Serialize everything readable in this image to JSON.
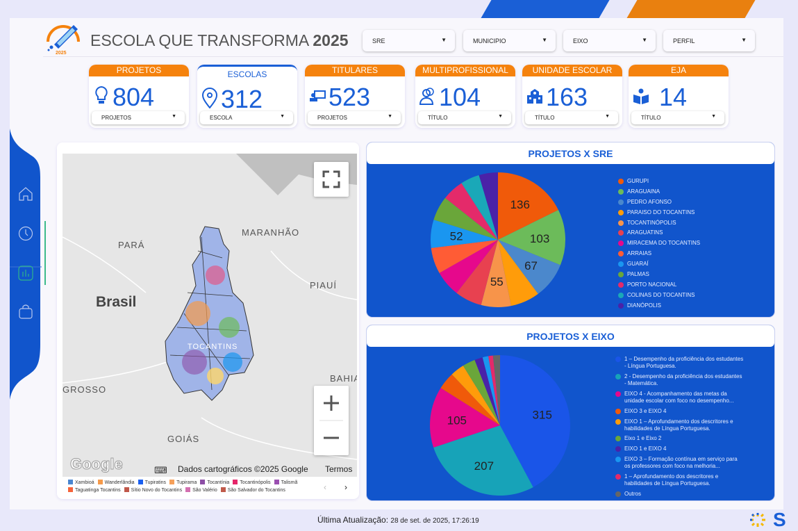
{
  "header": {
    "title": "ESCOLA QUE TRANSFORMA",
    "year": "2025",
    "logo_year": "2025"
  },
  "filters": [
    {
      "label": "SRE"
    },
    {
      "label": "MUNICIPIO"
    },
    {
      "label": "EIXO"
    },
    {
      "label": "PERFIL"
    }
  ],
  "kpis": [
    {
      "title": "PROJETOS",
      "value": "804",
      "icon": "lightbulb-icon",
      "selector": "PROJETOS"
    },
    {
      "title": "ESCOLAS",
      "value": "312",
      "icon": "location-pin-icon",
      "selector": "ESCOLA"
    },
    {
      "title": "TITULARES",
      "value": "523",
      "icon": "teacher-icon",
      "selector": "PROJETOS"
    },
    {
      "title": "MULTIPROFISSIONAL",
      "value": "104",
      "icon": "people-icon",
      "selector": "TÍTULO"
    },
    {
      "title": "UNIDADE ESCOLAR",
      "value": "163",
      "icon": "school-icon",
      "selector": "TÍTULO"
    },
    {
      "title": "EJA",
      "value": "14",
      "icon": "reader-icon",
      "selector": "TÍTULO"
    }
  ],
  "map": {
    "labels": {
      "brasil": "Brasil",
      "para": "PARÁ",
      "maranhao": "MARANHÃO",
      "piaui": "PIAUÍ",
      "grosso": "GROSSO",
      "goias": "GOIÁS",
      "bahia": "BAHIA",
      "tocantins": "TOCANTINS"
    },
    "attribution": "Dados cartográficos ©2025 Google",
    "terms": "Termos",
    "google": "Google",
    "legend": [
      {
        "name": "Xambioá",
        "color": "#4a86d0"
      },
      {
        "name": "Wanderlândia",
        "color": "#f59a4a"
      },
      {
        "name": "Tupiratins",
        "color": "#1a5ff0"
      },
      {
        "name": "Tupirama",
        "color": "#f5a05a"
      },
      {
        "name": "Tocantínia",
        "color": "#8d4fa6"
      },
      {
        "name": "Tocantinópolis",
        "color": "#e5266a"
      },
      {
        "name": "Talismã",
        "color": "#9a4fb0"
      },
      {
        "name": "Taguatinga Tocantins",
        "color": "#f5633a"
      },
      {
        "name": "Sítio Novo do Tocantins",
        "color": "#c0584a"
      },
      {
        "name": "São Valério",
        "color": "#d36fb0"
      },
      {
        "name": "São Salvador do Tocantins",
        "color": "#c05a4a"
      }
    ]
  },
  "chart_data": [
    {
      "type": "pie",
      "title": "PROJETOS X SRE",
      "categories": [
        "GURUPI",
        "ARAGUAINA",
        "PEDRO AFONSO",
        "PARAISO DO TOCANTINS",
        "TOCANTINÓPOLIS",
        "ARAGUATINS",
        "MIRACEMA DO TOCANTINS",
        "ARRAIAS",
        "GUARAÍ",
        "PALMAS",
        "PORTO NACIONAL",
        "COLINAS DO TOCANTINS",
        "DIANÓPOLIS"
      ],
      "values": [
        136,
        103,
        67,
        54,
        55,
        50,
        48,
        48,
        52,
        45,
        40,
        35,
        35
      ],
      "data_labels": [
        "136",
        "103",
        "67",
        "",
        "55",
        "",
        "",
        "",
        "52",
        "",
        "",
        "",
        ""
      ],
      "colors": [
        "#f05a0a",
        "#6cbb5a",
        "#4b88cc",
        "#ff9c0a",
        "#f7944a",
        "#e84150",
        "#e6088c",
        "#ff5c35",
        "#1a96f0",
        "#6aa63a",
        "#e42a6a",
        "#1aa8b8",
        "#4a22a8"
      ],
      "legend": "right"
    },
    {
      "type": "pie",
      "title": "PROJETOS X EIXO",
      "categories": [
        "1 – Desempenho da proficiência dos estudantes - Língua Portuguesa.",
        "2 - Desempenho da proficiência dos estudantes - Matemática.",
        "EIXO 4 - Acompanhamento das metas da unidade escolar com foco no desempenho...",
        "EIXO 3 e EIXO 4",
        "EIXO 1 – Aprofundamento dos descritores e habilidades de Língua Portuguesa.",
        "Eixo 1 e Eixo 2",
        "EIXO 1 e EIXO 4",
        "EIXO 3 – Formação contínua em serviço para os professores com foco na melhoria...",
        "1 – Aprofundamento dos descritores e habilidades de Língua Portuguesa.",
        "Outros"
      ],
      "values": [
        315,
        207,
        105,
        30,
        24,
        22,
        14,
        10,
        8,
        12
      ],
      "data_labels": [
        "315",
        "207",
        "105",
        "",
        "",
        "",
        "",
        "",
        "",
        ""
      ],
      "colors": [
        "#1a55e8",
        "#17a3b8",
        "#e6088c",
        "#f05a0a",
        "#ff9c0a",
        "#6aa63a",
        "#4a22a8",
        "#1a96f0",
        "#e42a6a",
        "#666666"
      ],
      "legend": "right"
    }
  ],
  "footer": {
    "label": "Última Atualização:",
    "value": "28 de set. de 2025, 17:26:19"
  }
}
